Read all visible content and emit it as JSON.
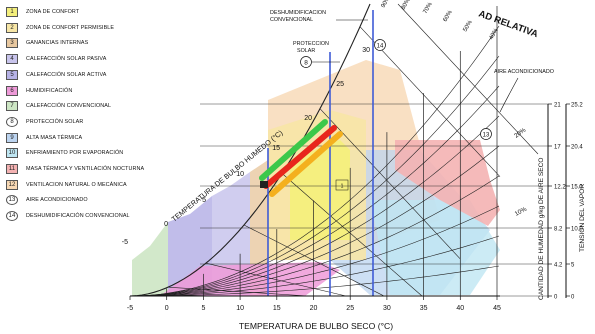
{
  "legend": [
    {
      "num": "1",
      "label": "ZONA DE CONFORT",
      "color": "#f4ef7c"
    },
    {
      "num": "2",
      "label": "ZONA DE CONFORT PERMISIBLE",
      "color": "#f7e6a6"
    },
    {
      "num": "3",
      "label": "GANANCIAS INTERNAS",
      "color": "#e8c8a0"
    },
    {
      "num": "4",
      "label": "CALEFACCIÓN SOLAR PASIVA",
      "color": "#c8c4ec"
    },
    {
      "num": "5",
      "label": "CALEFACCIÓN SOLAR ACTIVA",
      "color": "#b6b2e6"
    },
    {
      "num": "6",
      "label": "HUMIDIFICACIÓN",
      "color": "#ee9ad8"
    },
    {
      "num": "7",
      "label": "CALEFACCIÓN CONVENCIONAL",
      "color": "#cde6c4"
    },
    {
      "num": "8",
      "label": "PROTECCIÓN SOLAR",
      "color": "#ffffff",
      "circle": true
    },
    {
      "num": "9",
      "label": "ALTA MASA TÉRMICA",
      "color": "#bcd4f0"
    },
    {
      "num": "10",
      "label": "ENFRIAMIENTO POR EVAPORACIÓN",
      "color": "#bfe6f2"
    },
    {
      "num": "11",
      "label": "MASA TÉRMICA Y VENTILACIÓN NOCTURNA",
      "color": "#f4b2b2"
    },
    {
      "num": "12",
      "label": "VENTILACION NATURAL O MECÁNICA",
      "color": "#f7d8b4"
    },
    {
      "num": "13",
      "label": "AIRE ACONDICIONADO",
      "color": "#ffffff",
      "circle": true
    },
    {
      "num": "14",
      "label": "DESHUMIDIFICACIÓN CONVENCIONAL",
      "color": "#ffffff",
      "circle": true
    }
  ],
  "labels": {
    "x_axis": "TEMPERATURA DE BULBO SECO (°C)",
    "wet_bulb_axis": "TEMPERATURA DE BULBO HUMEDO (°C)",
    "rel_humidity": "HUMEDAD RELATIVA",
    "rel_humidity_visible": "AD RELATIVA",
    "humidity_axis": "CANTIDAD DE HUMEDAD g/kg DE AIRE SECO",
    "vapor_axis": "TENSION DEL VAPOR",
    "deshum": "DESHUMIDIFICACION CONVENCIONAL",
    "proteccion": "PROTECCION SOLAR",
    "aire": "AIRE ACONDICIONADO",
    "circle_8": "8",
    "circle_13": "13",
    "circle_14": "14",
    "small_box": "1"
  },
  "x_ticks": [
    "-5",
    "0",
    "5",
    "10",
    "15",
    "20",
    "25",
    "30",
    "35",
    "40",
    "45"
  ],
  "wet_bulb_ticks": [
    "-5",
    "0",
    "5",
    "10",
    "15",
    "20",
    "25",
    "30"
  ],
  "humidity_ticks": [
    "0",
    "4.2",
    "8.2",
    "12.2",
    "17",
    "21"
  ],
  "vapor_ticks": [
    "0",
    "5",
    "10.0",
    "15.0",
    "20.4",
    "25.2"
  ],
  "rh_curve_labels": [
    "10%",
    "20%"
  ],
  "rh_top_labels": [
    "40%",
    "50%",
    "60%",
    "70%",
    "80%",
    "90%"
  ],
  "colors": {
    "grid": "#222222",
    "blue_line": "#3f5bd6",
    "green_band": "#3cc84a",
    "red_band": "#e8261c",
    "orange_band": "#f4b01e"
  }
}
